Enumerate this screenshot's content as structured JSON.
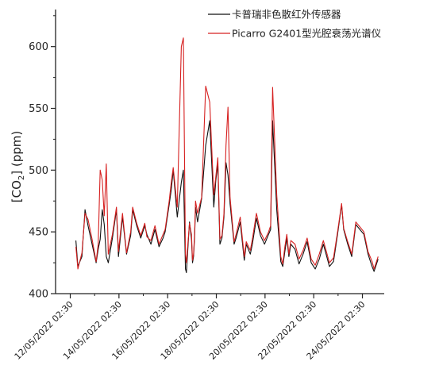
{
  "chart_data": {
    "type": "line",
    "title": "",
    "xlabel": "",
    "ylabel": "[CO2] (ppm)",
    "ylabel_main": "[CO",
    "ylabel_sub": "2",
    "ylabel_tail": "] (ppm)",
    "ylim": [
      400,
      630
    ],
    "xlim": [
      "2022-05-11 12:00",
      "2022-05-25 00:00"
    ],
    "yticks": [
      400,
      450,
      500,
      550,
      600
    ],
    "ytick_labels": [
      "400",
      "450",
      "500",
      "550",
      "600"
    ],
    "xticks": [
      "2022-05-12 02:30",
      "2022-05-14 02:30",
      "2022-05-16 02:30",
      "2022-05-18 02:30",
      "2022-05-20 02:30",
      "2022-05-22 02:30",
      "2022-05-24 02:30"
    ],
    "xtick_labels": [
      "12/05/2022 02:30",
      "14/05/2022 02:30",
      "16/05/2022 02:30",
      "18/05/2022 02:30",
      "20/05/2022 02:30",
      "22/05/2022 02:30",
      "24/05/2022 02:30"
    ],
    "grid": false,
    "legend_position": "top-right",
    "x": [
      "2022-05-12 08:00",
      "2022-05-12 10:00",
      "2022-05-12 14:00",
      "2022-05-12 17:00",
      "2022-05-12 20:00",
      "2022-05-13 00:00",
      "2022-05-13 04:00",
      "2022-05-13 06:00",
      "2022-05-13 08:00",
      "2022-05-13 10:00",
      "2022-05-13 12:00",
      "2022-05-13 14:00",
      "2022-05-13 16:00",
      "2022-05-13 20:00",
      "2022-05-14 00:00",
      "2022-05-14 02:00",
      "2022-05-14 06:00",
      "2022-05-14 10:00",
      "2022-05-14 14:00",
      "2022-05-14 16:00",
      "2022-05-14 20:00",
      "2022-05-15 00:00",
      "2022-05-15 04:00",
      "2022-05-15 06:00",
      "2022-05-15 10:00",
      "2022-05-15 14:00",
      "2022-05-15 18:00",
      "2022-05-15 22:00",
      "2022-05-16 00:00",
      "2022-05-16 04:00",
      "2022-05-16 06:00",
      "2022-05-16 08:00",
      "2022-05-16 12:00",
      "2022-05-16 16:00",
      "2022-05-16 18:00",
      "2022-05-16 20:00",
      "2022-05-16 21:00",
      "2022-05-17 00:00",
      "2022-05-17 02:00",
      "2022-05-17 03:00",
      "2022-05-17 04:00",
      "2022-05-17 05:00",
      "2022-05-17 06:00",
      "2022-05-17 08:00",
      "2022-05-17 12:00",
      "2022-05-17 16:00",
      "2022-05-17 20:00",
      "2022-05-18 00:00",
      "2022-05-18 02:00",
      "2022-05-18 04:00",
      "2022-05-18 06:00",
      "2022-05-18 08:00",
      "2022-05-18 10:00",
      "2022-05-18 12:00",
      "2022-05-18 14:00",
      "2022-05-18 16:00",
      "2022-05-18 20:00",
      "2022-05-18 22:00",
      "2022-05-19 02:00",
      "2022-05-19 06:00",
      "2022-05-19 08:00",
      "2022-05-19 12:00",
      "2022-05-19 14:00",
      "2022-05-19 18:00",
      "2022-05-19 22:00",
      "2022-05-20 02:00",
      "2022-05-20 06:00",
      "2022-05-20 08:00",
      "2022-05-20 10:00",
      "2022-05-20 14:00",
      "2022-05-20 18:00",
      "2022-05-20 20:00",
      "2022-05-20 22:00",
      "2022-05-21 00:00",
      "2022-05-21 02:00",
      "2022-05-21 04:00",
      "2022-05-21 08:00",
      "2022-05-21 12:00",
      "2022-05-21 16:00",
      "2022-05-21 20:00",
      "2022-05-22 00:00",
      "2022-05-22 04:00",
      "2022-05-22 08:00",
      "2022-05-22 12:00",
      "2022-05-22 14:00",
      "2022-05-22 18:00",
      "2022-05-22 22:00",
      "2022-05-23 02:00",
      "2022-05-23 06:00",
      "2022-05-23 08:00",
      "2022-05-23 12:00",
      "2022-05-23 16:00",
      "2022-05-23 20:00",
      "2022-05-24 00:00",
      "2022-05-24 04:00",
      "2022-05-24 08:00",
      "2022-05-24 12:00",
      "2022-05-24 14:00",
      "2022-05-24 18:00"
    ],
    "series": [
      {
        "name": "卡普瑞非色散红外传感器",
        "color": "#111111",
        "values": [
          443,
          422,
          430,
          468,
          455,
          440,
          425,
          436,
          444,
          468,
          456,
          430,
          425,
          445,
          468,
          430,
          462,
          432,
          447,
          468,
          455,
          445,
          455,
          448,
          440,
          452,
          438,
          445,
          450,
          472,
          484,
          500,
          462,
          490,
          500,
          420,
          417,
          458,
          444,
          425,
          430,
          445,
          470,
          458,
          477,
          520,
          540,
          470,
          492,
          505,
          440,
          445,
          462,
          506,
          496,
          473,
          440,
          445,
          458,
          427,
          440,
          432,
          440,
          461,
          447,
          440,
          448,
          452,
          540,
          468,
          426,
          422,
          434,
          445,
          430,
          440,
          436,
          424,
          432,
          442,
          425,
          420,
          428,
          440,
          434,
          422,
          426,
          448,
          472,
          452,
          440,
          430,
          456,
          452,
          448,
          432,
          422,
          418,
          428
        ]
      },
      {
        "name": "Picarro G2401型光腔衰荡光谱仪",
        "color": "#d62020",
        "values": [
          438,
          420,
          433,
          465,
          460,
          444,
          426,
          440,
          500,
          492,
          463,
          505,
          432,
          448,
          470,
          434,
          465,
          433,
          450,
          470,
          457,
          447,
          457,
          446,
          443,
          455,
          440,
          448,
          452,
          475,
          490,
          502,
          470,
          600,
          607,
          432,
          425,
          457,
          448,
          427,
          432,
          448,
          475,
          465,
          478,
          568,
          555,
          480,
          495,
          510,
          444,
          447,
          465,
          520,
          551,
          478,
          442,
          448,
          462,
          430,
          442,
          435,
          444,
          465,
          450,
          443,
          450,
          455,
          567,
          480,
          430,
          424,
          438,
          448,
          432,
          443,
          440,
          428,
          435,
          445,
          428,
          423,
          432,
          443,
          437,
          425,
          429,
          450,
          473,
          453,
          442,
          432,
          458,
          454,
          450,
          434,
          426,
          420,
          430
        ]
      }
    ]
  }
}
